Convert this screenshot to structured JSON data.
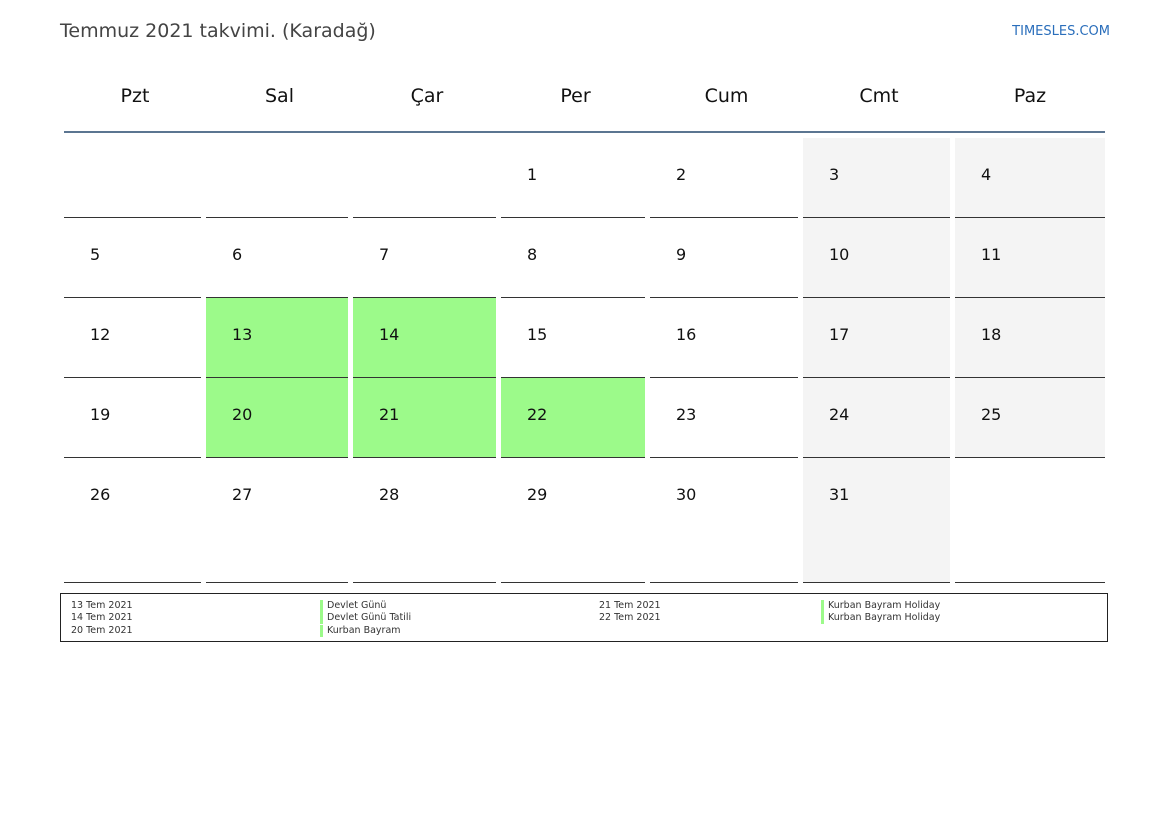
{
  "header": {
    "title": "Temmuz 2021 takvimi. (Karadağ)",
    "site": "TIMESLES.COM"
  },
  "calendar": {
    "weekdays": [
      "Pzt",
      "Sal",
      "Çar",
      "Per",
      "Cum",
      "Cmt",
      "Paz"
    ],
    "weeks": [
      [
        "",
        "",
        "",
        "1",
        "2",
        "3",
        "4"
      ],
      [
        "5",
        "6",
        "7",
        "8",
        "9",
        "10",
        "11"
      ],
      [
        "12",
        "13",
        "14",
        "15",
        "16",
        "17",
        "18"
      ],
      [
        "19",
        "20",
        "21",
        "22",
        "23",
        "24",
        "25"
      ],
      [
        "26",
        "27",
        "28",
        "29",
        "30",
        "31",
        ""
      ]
    ],
    "holiday_color": "#9cfa8a",
    "weekend_color": "#f4f4f4"
  },
  "legend": {
    "left": [
      {
        "date": "13 Tem 2021",
        "name": "Devlet Günü"
      },
      {
        "date": "14 Tem 2021",
        "name": "Devlet Günü Tatili"
      },
      {
        "date": "20 Tem 2021",
        "name": "Kurban Bayram"
      }
    ],
    "right": [
      {
        "date": "21 Tem 2021",
        "name": "Kurban Bayram Holiday"
      },
      {
        "date": "22 Tem 2021",
        "name": "Kurban Bayram Holiday"
      }
    ]
  }
}
